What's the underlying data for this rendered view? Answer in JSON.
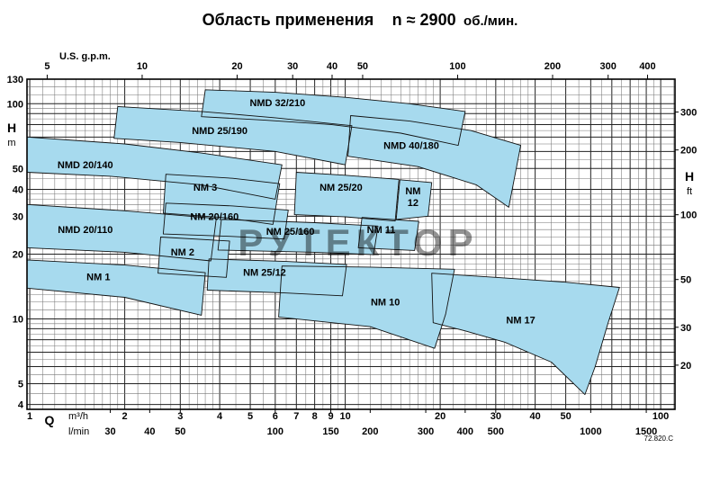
{
  "title": {
    "main": "Область применения",
    "speed": "n ≈ 2900",
    "unit": "об./мин."
  },
  "watermark": "РУТЕКТОР",
  "doc_ref": "72.820.C",
  "colors": {
    "region_fill": "#a7daee",
    "region_stroke": "#111111",
    "grid_minor": "#777777",
    "grid_major": "#222222",
    "border": "#000000",
    "watermark": "#8f8f8f"
  },
  "chart_data": {
    "type": "area",
    "title": "Область применения n ≈ 2900 об./мин.",
    "grid": "log-log",
    "xlim_m3h": [
      0.98,
      111
    ],
    "ylim_m": [
      3.8,
      130
    ],
    "x_axis_top": {
      "label": "U.S. g.p.m.",
      "ticks": [
        5,
        10,
        20,
        30,
        40,
        50,
        100,
        200,
        300,
        400
      ]
    },
    "y_axis_left": {
      "label": "H",
      "unit": "m",
      "ticks": [
        130,
        100,
        50,
        40,
        30,
        20,
        10,
        5,
        4
      ]
    },
    "y_axis_right": {
      "label": "H",
      "unit": "ft",
      "ticks": [
        300,
        200,
        100,
        50,
        30,
        20
      ]
    },
    "x_axis_bottom": {
      "label": "Q",
      "unit_row1": "m³/h",
      "unit_row2": "l/min",
      "m3h_ticks": [
        1,
        2,
        3,
        4,
        5,
        6,
        7,
        8,
        9,
        10,
        20,
        30,
        40,
        50,
        100
      ],
      "lmin_ticks": [
        30,
        40,
        50,
        100,
        150,
        200,
        300,
        400,
        500,
        1000,
        1500
      ]
    },
    "regions": [
      {
        "name": "NMD 32/210",
        "label_lines": [
          "NMD 32/210"
        ],
        "label_at": [
          6.1,
          101
        ],
        "points_q_h": [
          [
            3.6,
            116
          ],
          [
            6,
            113
          ],
          [
            10,
            107
          ],
          [
            16,
            100
          ],
          [
            24,
            92
          ],
          [
            22.8,
            64
          ],
          [
            15,
            73
          ],
          [
            9,
            80
          ],
          [
            5.5,
            84
          ],
          [
            3.5,
            87
          ]
        ]
      },
      {
        "name": "NMD 25/190",
        "label_lines": [
          "NMD 25/190"
        ],
        "label_at": [
          4.0,
          75
        ],
        "points_q_h": [
          [
            1.9,
            97
          ],
          [
            3.5,
            92
          ],
          [
            6,
            86
          ],
          [
            10.5,
            79
          ],
          [
            10,
            52
          ],
          [
            6,
            60
          ],
          [
            3,
            66
          ],
          [
            1.85,
            69
          ]
        ]
      },
      {
        "name": "NMD 40/180",
        "label_lines": [
          "NMD 40/180"
        ],
        "label_at": [
          16.2,
          64
        ],
        "points_q_h": [
          [
            10.4,
            88
          ],
          [
            16,
            83
          ],
          [
            25,
            75
          ],
          [
            36,
            64
          ],
          [
            33,
            33
          ],
          [
            26,
            42
          ],
          [
            17,
            51
          ],
          [
            10.2,
            57
          ]
        ]
      },
      {
        "name": "NMD 20/140",
        "label_lines": [
          "NMD 20/140"
        ],
        "label_at": [
          1.5,
          52
        ],
        "points_q_h": [
          [
            0.98,
            70
          ],
          [
            2,
            65
          ],
          [
            3.5,
            59
          ],
          [
            6.3,
            52
          ],
          [
            6.0,
            36
          ],
          [
            3.5,
            42
          ],
          [
            1.8,
            46
          ],
          [
            0.98,
            48
          ]
        ]
      },
      {
        "name": "NM 3",
        "label_lines": [
          "NM 3"
        ],
        "label_at": [
          3.6,
          41
        ],
        "points_q_h": [
          [
            2.7,
            47
          ],
          [
            4.4,
            45
          ],
          [
            6.2,
            42.5
          ],
          [
            5.9,
            27.5
          ],
          [
            4.2,
            29.5
          ],
          [
            2.65,
            31
          ]
        ]
      },
      {
        "name": "NM 25/20",
        "label_lines": [
          "NM 25/20"
        ],
        "label_at": [
          9.7,
          41
        ],
        "points_q_h": [
          [
            7,
            48
          ],
          [
            10,
            46.5
          ],
          [
            14.8,
            44.5
          ],
          [
            14.4,
            28.5
          ],
          [
            10,
            29.8
          ],
          [
            6.9,
            30.5
          ]
        ]
      },
      {
        "name": "NM 12",
        "label_lines": [
          "NM",
          "12"
        ],
        "label_at": [
          16.4,
          37
        ],
        "points_q_h": [
          [
            14.9,
            44.3
          ],
          [
            18.8,
            43
          ],
          [
            18.3,
            30
          ],
          [
            14.5,
            29
          ]
        ]
      },
      {
        "name": "NM 20/160",
        "label_lines": [
          "NM 20/160"
        ],
        "label_at": [
          3.85,
          30
        ],
        "points_q_h": [
          [
            2.7,
            34.5
          ],
          [
            4.4,
            33.5
          ],
          [
            6.6,
            32
          ],
          [
            6.4,
            23.5
          ],
          [
            4.3,
            24.2
          ],
          [
            2.65,
            24.8
          ]
        ]
      },
      {
        "name": "NMD 20/110",
        "label_lines": [
          "NMD 20/110"
        ],
        "label_at": [
          1.5,
          26
        ],
        "points_q_h": [
          [
            0.98,
            34
          ],
          [
            2,
            31.8
          ],
          [
            3.9,
            29.3
          ],
          [
            3.75,
            18.6
          ],
          [
            2,
            20.4
          ],
          [
            0.98,
            21.4
          ]
        ]
      },
      {
        "name": "NM 25/160",
        "label_lines": [
          "NM 25/160"
        ],
        "label_at": [
          6.7,
          25.5
        ],
        "points_q_h": [
          [
            4.05,
            29
          ],
          [
            8,
            28
          ],
          [
            12.7,
            27
          ],
          [
            12.3,
            19.9
          ],
          [
            8,
            20.4
          ],
          [
            3.95,
            20.9
          ]
        ]
      },
      {
        "name": "NM 11",
        "label_lines": [
          "NM 11"
        ],
        "label_at": [
          13,
          26
        ],
        "points_q_h": [
          [
            11.3,
            29.6
          ],
          [
            17.1,
            28.4
          ],
          [
            16.6,
            20.8
          ],
          [
            11,
            21.4
          ]
        ]
      },
      {
        "name": "NM 2",
        "label_lines": [
          "NM 2"
        ],
        "label_at": [
          3.05,
          20.5
        ],
        "points_q_h": [
          [
            2.6,
            24
          ],
          [
            4.3,
            23
          ],
          [
            4.2,
            15.6
          ],
          [
            2.55,
            16.3
          ]
        ]
      },
      {
        "name": "NM 25/12",
        "label_lines": [
          "NM 25/12"
        ],
        "label_at": [
          5.55,
          16.5
        ],
        "points_q_h": [
          [
            3.7,
            19
          ],
          [
            6.5,
            18.5
          ],
          [
            10.1,
            17.9
          ],
          [
            9.8,
            12.8
          ],
          [
            6.4,
            13.2
          ],
          [
            3.65,
            13.6
          ]
        ]
      },
      {
        "name": "NM 1",
        "label_lines": [
          "NM 1"
        ],
        "label_at": [
          1.65,
          15.7
        ],
        "points_q_h": [
          [
            0.98,
            18.8
          ],
          [
            2,
            17.8
          ],
          [
            3.6,
            16.4
          ],
          [
            3.5,
            10.4
          ],
          [
            2,
            12.6
          ],
          [
            0.98,
            13.9
          ]
        ]
      },
      {
        "name": "NM 10",
        "label_lines": [
          "NM 10"
        ],
        "label_at": [
          13.4,
          12
        ],
        "points_q_h": [
          [
            6.3,
            17.6
          ],
          [
            12,
            17.4
          ],
          [
            22.2,
            17.0
          ],
          [
            20.8,
            10.5
          ],
          [
            19.2,
            7.3
          ],
          [
            12,
            9.2
          ],
          [
            6.15,
            10.2
          ]
        ]
      },
      {
        "name": "NM 17",
        "label_lines": [
          "NM 17"
        ],
        "label_at": [
          36,
          9.9
        ],
        "points_q_h": [
          [
            18.8,
            16.3
          ],
          [
            30,
            15.6
          ],
          [
            50,
            14.8
          ],
          [
            74,
            14.0
          ],
          [
            68,
            9.5
          ],
          [
            62,
            6.0
          ],
          [
            57.5,
            4.45
          ],
          [
            45,
            6.3
          ],
          [
            32,
            7.8
          ],
          [
            24,
            8.8
          ],
          [
            19,
            9.6
          ]
        ]
      }
    ]
  }
}
